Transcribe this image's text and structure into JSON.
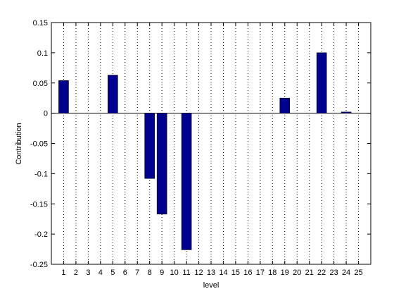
{
  "chart_data": {
    "type": "bar",
    "title": "",
    "xlabel": "level",
    "ylabel": "Contribution",
    "categories": [
      "1",
      "2",
      "3",
      "4",
      "5",
      "6",
      "7",
      "8",
      "9",
      "10",
      "11",
      "12",
      "13",
      "14",
      "15",
      "16",
      "17",
      "18",
      "19",
      "20",
      "21",
      "22",
      "23",
      "24",
      "25"
    ],
    "values": [
      0.054,
      0,
      0,
      0,
      0.063,
      0,
      0,
      -0.108,
      -0.167,
      0,
      -0.226,
      0,
      0,
      0,
      0,
      0,
      0,
      0,
      0.025,
      0,
      0,
      0.1,
      0,
      0.002,
      0
    ],
    "ylim": [
      -0.25,
      0.15
    ],
    "yticks": [
      -0.25,
      -0.2,
      -0.15,
      -0.1,
      -0.05,
      0,
      0.05,
      0.1,
      0.15
    ],
    "ytick_labels": [
      "-0.25",
      "-0.2",
      "-0.15",
      "-0.1",
      "-0.05",
      "0",
      "0.05",
      "0.1",
      "0.15"
    ],
    "grid": "vertical dotted",
    "bar_color": "#00008f",
    "bar_edge_color": "#000000"
  }
}
